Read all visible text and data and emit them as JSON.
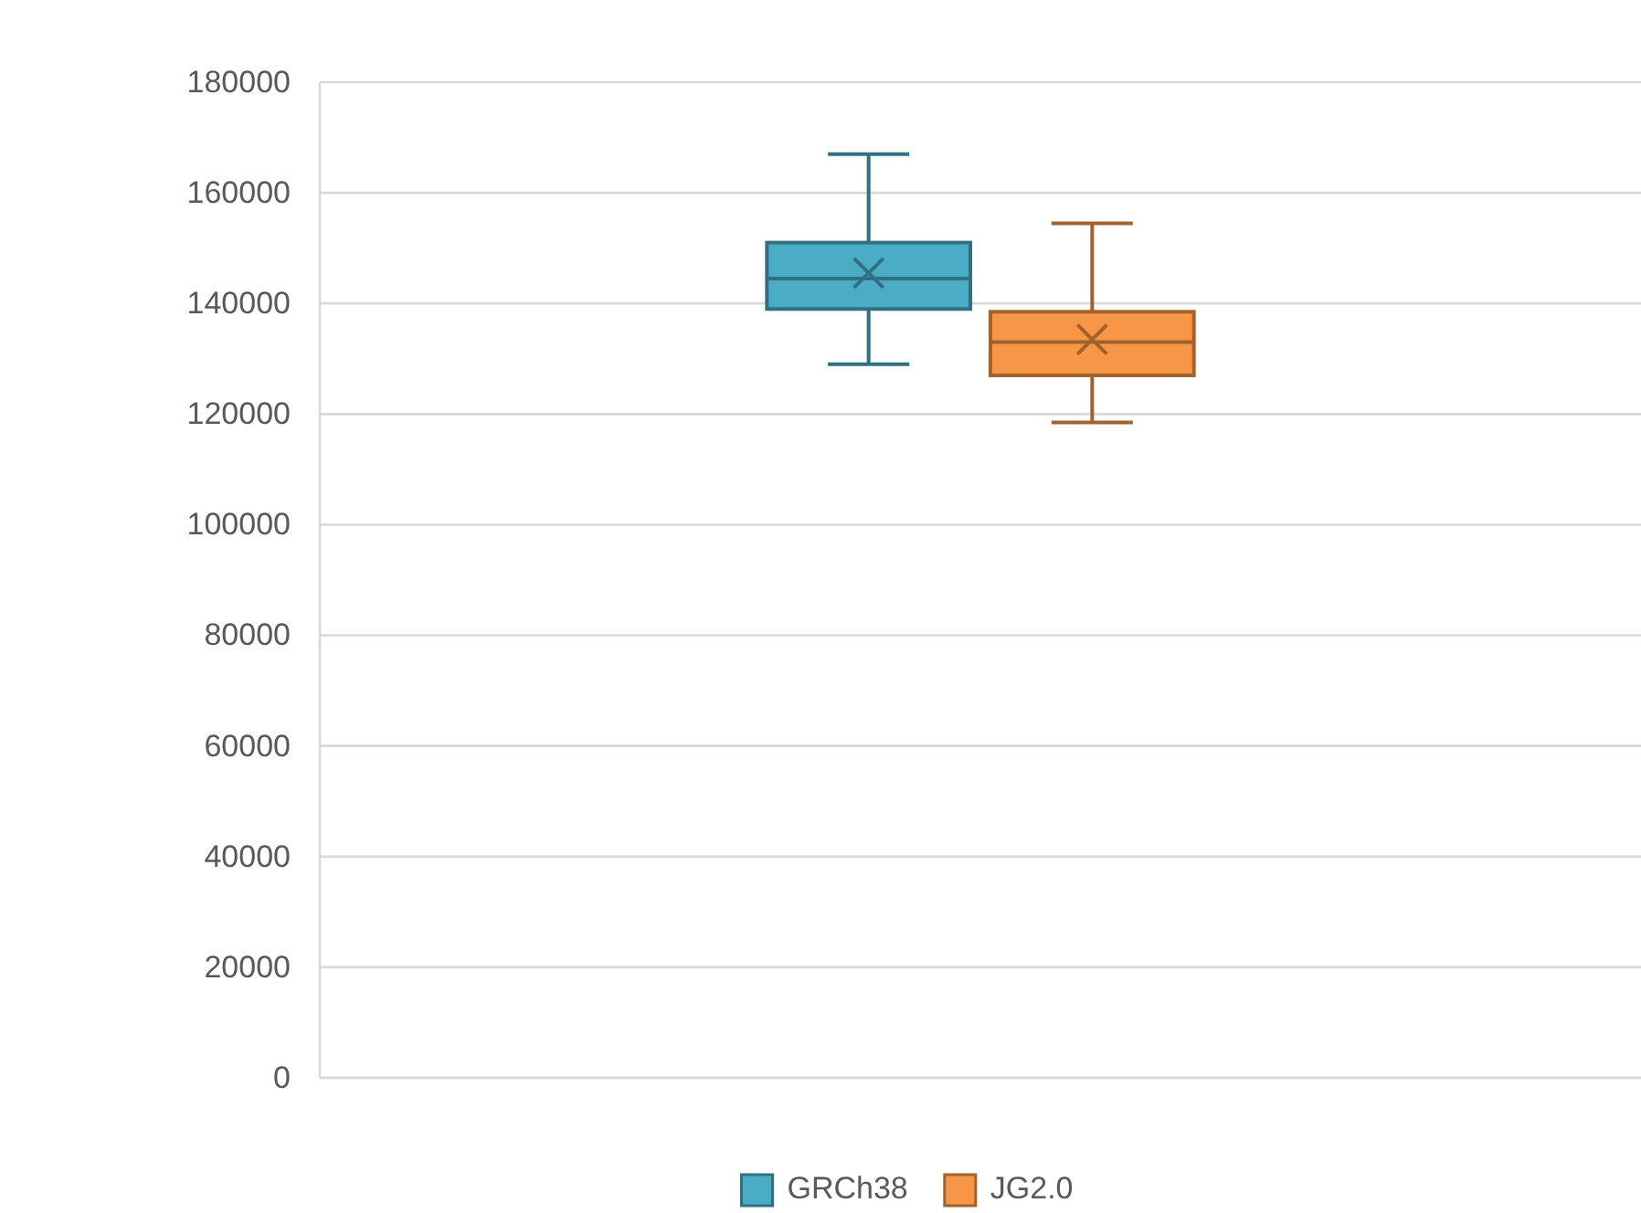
{
  "chart_data": {
    "type": "box",
    "categories": [
      null
    ],
    "series": [
      {
        "name": "GRCh38",
        "color": "#4bacc6",
        "boxes": [
          {
            "low": 129000,
            "q1": 139000,
            "median": 144500,
            "q3": 151000,
            "high": 167000,
            "mean": 145500
          }
        ]
      },
      {
        "name": "JG2.0",
        "color": "#f79646",
        "boxes": [
          {
            "low": 118500,
            "q1": 127000,
            "median": 133000,
            "q3": 138500,
            "high": 154500,
            "mean": 133500
          }
        ]
      }
    ],
    "ylim": [
      0,
      180000
    ],
    "yticks": [
      0,
      20000,
      40000,
      60000,
      80000,
      100000,
      120000,
      140000,
      160000,
      180000
    ],
    "grid": "y",
    "legend": "bottom"
  }
}
